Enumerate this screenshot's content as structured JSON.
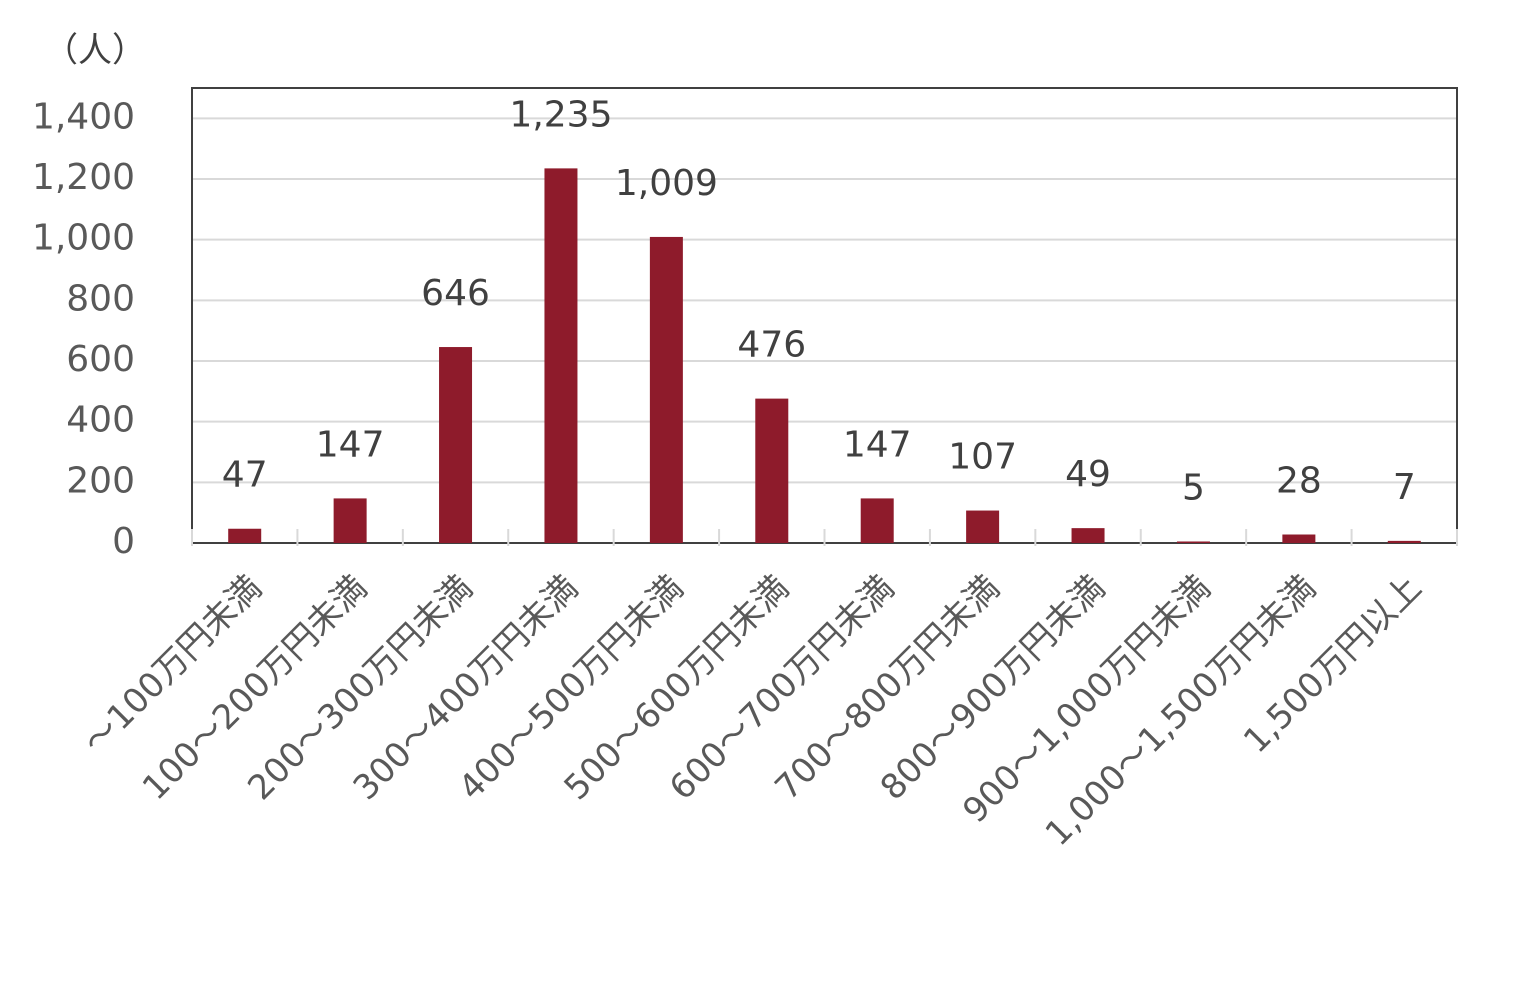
{
  "chart_data": {
    "type": "bar",
    "y_unit_label": "（人）",
    "categories": [
      "～100万円未満",
      "100～200万円未満",
      "200～300万円未満",
      "300～400万円未満",
      "400～500万円未満",
      "500～600万円未満",
      "600～700万円未満",
      "700～800万円未満",
      "800～900万円未満",
      "900～1,000万円未満",
      "1,000～1,500万円未満",
      "1,500万円以上"
    ],
    "values": [
      47,
      147,
      646,
      1235,
      1009,
      476,
      147,
      107,
      49,
      5,
      28,
      7
    ],
    "value_labels": [
      "47",
      "147",
      "646",
      "1,235",
      "1,009",
      "476",
      "147",
      "107",
      "49",
      "5",
      "28",
      "7"
    ],
    "color": "#8e1b2b",
    "ylim": [
      0,
      1500
    ],
    "yticks": [
      0,
      200,
      400,
      600,
      800,
      {
        "value": 1000,
        "label": "1,000"
      },
      {
        "value": 1200,
        "label": "1,200"
      },
      {
        "value": 1400,
        "label": "1,400"
      }
    ],
    "grid": true
  }
}
